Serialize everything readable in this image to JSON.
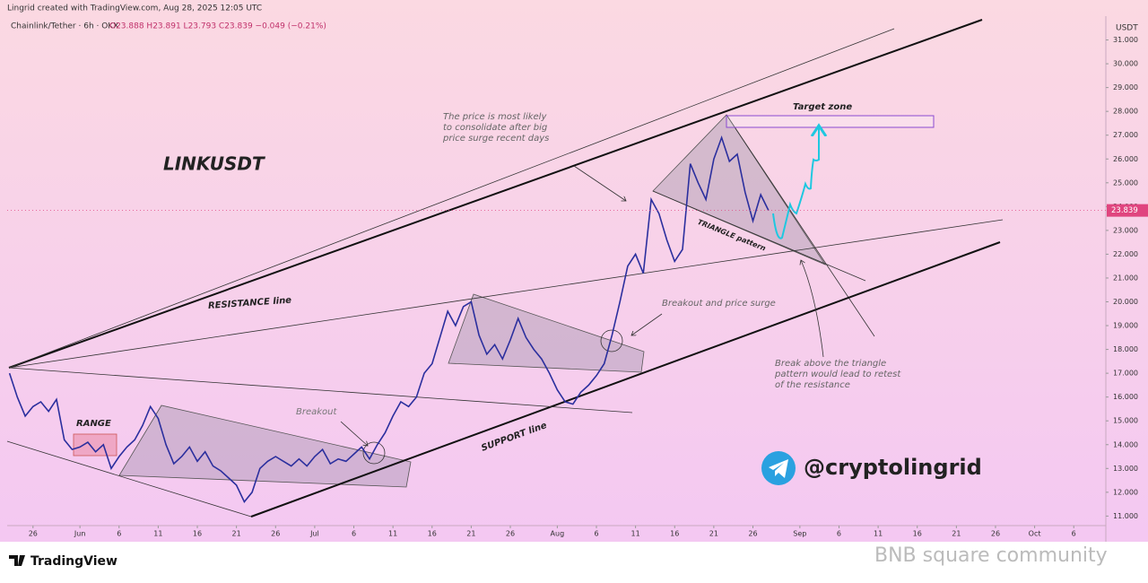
{
  "header": "Lingrid created with TradingView.com, Aug 28, 2025 12:05 UTC",
  "symbol_info": "Chainlink/Tether · 6h · OKX",
  "ohlc": "O23.888  H23.891  L23.793  C23.839  −0.049 (−0.21%)",
  "annotations": {
    "symbol": "LINKUSDT",
    "range": "RANGE",
    "breakout": "Breakout",
    "resistance": "RESISTANCE line",
    "support": "SUPPORT line",
    "breakout_surge": "Breakout and price surge",
    "consolidate": [
      "The price is most likely",
      "to consolidate after big",
      "price surge recent days"
    ],
    "target": "Target zone",
    "triangle": "TRIANGLE pattern",
    "retest": [
      "Break above the triangle",
      "pattern would lead to retest",
      "of the resistance"
    ],
    "handle": "@cryptolingrid"
  },
  "footer": {
    "brand": "TradingView",
    "watermark": "BNB square community"
  },
  "chart_data": {
    "type": "line",
    "y_unit": "USDT",
    "x": [
      143,
      144,
      145,
      146,
      147,
      148,
      149,
      150,
      151,
      152,
      153,
      154,
      155,
      156,
      157,
      158,
      159,
      160,
      161,
      162,
      163,
      164,
      165,
      166,
      167,
      168,
      169,
      170,
      171,
      172,
      173,
      174,
      175,
      176,
      177,
      178,
      179,
      180,
      181,
      182,
      183,
      184,
      185,
      186,
      187,
      188,
      189,
      190,
      191,
      192,
      193,
      194,
      195,
      196,
      197,
      198,
      199,
      200,
      201,
      202,
      203,
      204,
      205,
      206,
      207,
      208,
      209,
      210,
      211,
      212,
      213,
      214,
      215,
      216,
      217,
      218,
      219,
      220,
      221,
      222,
      223,
      224,
      225,
      226,
      227,
      228,
      229,
      230,
      231,
      232,
      233,
      234,
      235,
      236,
      237,
      238,
      239,
      240
    ],
    "series": [
      {
        "color": "#2b2f9e",
        "values": [
          17.0,
          16.0,
          15.2,
          15.6,
          15.8,
          15.4,
          15.9,
          14.2,
          13.8,
          13.9,
          14.1,
          13.7,
          14.0,
          13.0,
          13.5,
          13.9,
          14.2,
          14.8,
          15.6,
          15.1,
          14.0,
          13.2,
          13.5,
          13.9,
          13.3,
          13.7,
          13.1,
          12.9,
          12.6,
          12.3,
          11.6,
          12.0,
          13.0,
          13.3,
          13.5,
          13.3,
          13.1,
          13.4,
          13.1,
          13.5,
          13.8,
          13.2,
          13.4,
          13.3,
          13.6,
          13.9,
          13.4,
          14.0,
          14.5,
          15.2,
          15.8,
          15.6,
          16.0,
          17.0,
          17.4,
          18.5,
          19.6,
          19.0,
          19.8,
          20.0,
          18.6,
          17.8,
          18.2,
          17.6,
          18.4,
          19.3,
          18.5,
          18.0,
          17.6,
          17.0,
          16.3,
          15.8,
          15.7,
          16.2,
          16.5,
          16.9,
          17.4,
          18.6,
          20.0,
          21.5,
          22.0,
          21.2,
          24.3,
          23.7,
          22.6,
          21.7,
          22.2,
          25.8,
          25.0,
          24.3,
          26.0,
          26.9,
          25.9,
          26.2,
          24.6,
          23.4,
          24.5,
          23.839
        ]
      }
    ],
    "last_price": 23.839,
    "last_price_color": "#e0457f",
    "xlim": [
      142.7,
      283.1
    ],
    "ylim": [
      10.6,
      32.0
    ],
    "xticks": [
      {
        "value": 146,
        "label": "26"
      },
      {
        "value": 152,
        "label": "Jun"
      },
      {
        "value": 157,
        "label": "6"
      },
      {
        "value": 162,
        "label": "11"
      },
      {
        "value": 167,
        "label": "16"
      },
      {
        "value": 172,
        "label": "21"
      },
      {
        "value": 177,
        "label": "26"
      },
      {
        "value": 182,
        "label": "Jul"
      },
      {
        "value": 187,
        "label": "6"
      },
      {
        "value": 192,
        "label": "11"
      },
      {
        "value": 197,
        "label": "16"
      },
      {
        "value": 202,
        "label": "21"
      },
      {
        "value": 207,
        "label": "26"
      },
      {
        "value": 213,
        "label": "Aug"
      },
      {
        "value": 218,
        "label": "6"
      },
      {
        "value": 223,
        "label": "11"
      },
      {
        "value": 228,
        "label": "16"
      },
      {
        "value": 233,
        "label": "21"
      },
      {
        "value": 238,
        "label": "26"
      },
      {
        "value": 244,
        "label": "Sep"
      },
      {
        "value": 249,
        "label": "6"
      },
      {
        "value": 254,
        "label": "11"
      },
      {
        "value": 259,
        "label": "16"
      },
      {
        "value": 264,
        "label": "21"
      },
      {
        "value": 269,
        "label": "26"
      },
      {
        "value": 274,
        "label": "Oct"
      },
      {
        "value": 279,
        "label": "6"
      }
    ],
    "yticks": [
      {
        "value": 11,
        "label": "11.000"
      },
      {
        "value": 12,
        "label": "12.000"
      },
      {
        "value": 13,
        "label": "13.000"
      },
      {
        "value": 14,
        "label": "14.000"
      },
      {
        "value": 15,
        "label": "15.000"
      },
      {
        "value": 16,
        "label": "16.000"
      },
      {
        "value": 17,
        "label": "17.000"
      },
      {
        "value": 18,
        "label": "18.000"
      },
      {
        "value": 19,
        "label": "19.000"
      },
      {
        "value": 20,
        "label": "20.000"
      },
      {
        "value": 21,
        "label": "21.000"
      },
      {
        "value": 22,
        "label": "22.000"
      },
      {
        "value": 23,
        "label": "23.000"
      },
      {
        "value": 24,
        "label": "24.000"
      },
      {
        "value": 25,
        "label": "25.000"
      },
      {
        "value": 26,
        "label": "26.000"
      },
      {
        "value": 27,
        "label": "27.000"
      },
      {
        "value": 28,
        "label": "28.000"
      },
      {
        "value": 29,
        "label": "29.000"
      },
      {
        "value": 30,
        "label": "30.000"
      },
      {
        "value": 31,
        "label": "31.000"
      }
    ],
    "grid": false
  }
}
